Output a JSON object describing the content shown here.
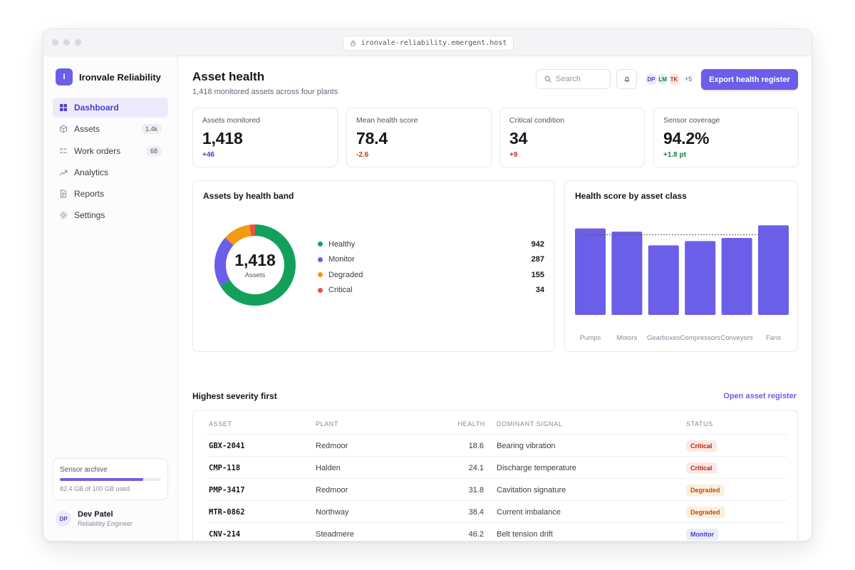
{
  "browser": {
    "url": "ironvale-reliability.emergent.host"
  },
  "brand": {
    "logo_letter": "I",
    "name": "Ironvale Reliability"
  },
  "sidebar": {
    "items": [
      {
        "label": "Dashboard",
        "icon": "grid-icon",
        "active": true,
        "badge": ""
      },
      {
        "label": "Assets",
        "icon": "cube-icon",
        "active": false,
        "badge": "1.4k"
      },
      {
        "label": "Work orders",
        "icon": "list-check-icon",
        "active": false,
        "badge": "68"
      },
      {
        "label": "Analytics",
        "icon": "trend-icon",
        "active": false,
        "badge": ""
      },
      {
        "label": "Reports",
        "icon": "document-icon",
        "active": false,
        "badge": ""
      },
      {
        "label": "Settings",
        "icon": "gear-icon",
        "active": false,
        "badge": ""
      }
    ],
    "archive": {
      "label": "Sensor archive",
      "used_text": "82.4 GB of 100 GB used",
      "fraction": 0.824
    },
    "user": {
      "initials": "DP",
      "name": "Dev Patel",
      "role": "Reliability Engineer"
    }
  },
  "header": {
    "title": "Asset health",
    "subtitle": "1,418 monitored assets across four plants",
    "search_placeholder": "Search",
    "avatars": [
      {
        "initials": "DP",
        "bg": "#ece9fb",
        "fg": "#4b3fcb"
      },
      {
        "initials": "LM",
        "bg": "#e3f4ea",
        "fg": "#1d7a45"
      },
      {
        "initials": "TK",
        "bg": "#fbe9e6",
        "fg": "#c2341f"
      }
    ],
    "avatars_more": "+5",
    "export_label": "Export health register"
  },
  "kpis": [
    {
      "label": "Assets monitored",
      "value": "1,418",
      "delta": "+46",
      "delta_color": "#4b3fcb"
    },
    {
      "label": "Mean health score",
      "value": "78.4",
      "delta": "-2.6",
      "delta_color": "#c2410c"
    },
    {
      "label": "Critical condition",
      "value": "34",
      "delta": "+9",
      "delta_color": "#c2341f"
    },
    {
      "label": "Sensor coverage",
      "value": "94.2%",
      "delta": "+1.8 pt",
      "delta_color": "#15803d"
    }
  ],
  "health_bands": {
    "title": "Assets by health band",
    "total": "1,418",
    "total_label": "Assets",
    "bands": [
      {
        "name": "Healthy",
        "value": 942,
        "color": "#13a05b"
      },
      {
        "name": "Monitor",
        "value": 287,
        "color": "#6b5ee8"
      },
      {
        "name": "Degraded",
        "value": 155,
        "color": "#f39a12"
      },
      {
        "name": "Critical",
        "value": 34,
        "color": "#e8543a"
      }
    ]
  },
  "chart_data": {
    "type": "bar",
    "title": "Health score by asset class",
    "categories": [
      "Pumps",
      "Motors",
      "Gearboxes",
      "Compressors",
      "Conveyors",
      "Fans"
    ],
    "values": [
      82,
      79,
      66,
      70,
      73,
      85
    ],
    "reference_line": 76,
    "ylim": [
      0,
      100
    ],
    "color": "#6b5ee8",
    "grid": false
  },
  "severity": {
    "title": "Highest severity first",
    "link": "Open asset register",
    "columns": [
      "ASSET",
      "PLANT",
      "HEALTH",
      "DOMINANT SIGNAL",
      "STATUS"
    ],
    "rows": [
      {
        "asset": "GBX-2041",
        "plant": "Redmoor",
        "health": "18.6",
        "signal": "Bearing vibration",
        "status": "Critical"
      },
      {
        "asset": "CMP-118",
        "plant": "Halden",
        "health": "24.1",
        "signal": "Discharge temperature",
        "status": "Critical"
      },
      {
        "asset": "PMP-3417",
        "plant": "Redmoor",
        "health": "31.8",
        "signal": "Cavitation signature",
        "status": "Degraded"
      },
      {
        "asset": "MTR-0862",
        "plant": "Northway",
        "health": "38.4",
        "signal": "Current imbalance",
        "status": "Degraded"
      },
      {
        "asset": "CNV-214",
        "plant": "Steadmere",
        "health": "46.2",
        "signal": "Belt tension drift",
        "status": "Monitor"
      }
    ],
    "status_styles": {
      "Critical": {
        "bg": "#fde8e5",
        "fg": "#b4281a"
      },
      "Degraded": {
        "bg": "#fdeedd",
        "fg": "#b5520b"
      },
      "Monitor": {
        "bg": "#ecebfc",
        "fg": "#4b3fcb"
      }
    }
  }
}
